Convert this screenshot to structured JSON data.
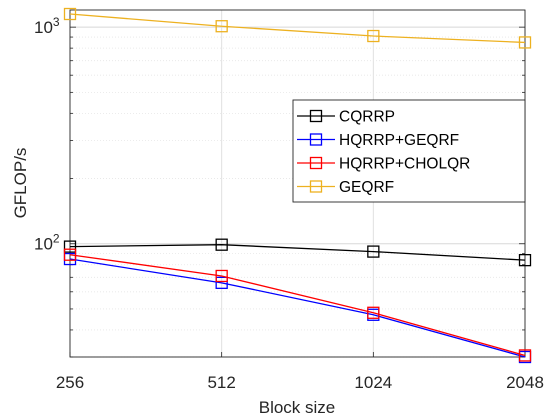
{
  "chart_data": {
    "type": "line",
    "title": "",
    "xlabel": "Block size",
    "ylabel": "GFLOP/s",
    "x": [
      256,
      512,
      1024,
      2048
    ],
    "x_ticks": [
      "256",
      "512",
      "1024",
      "2048"
    ],
    "xlim": [
      256,
      2048
    ],
    "x_scale": "log2",
    "y_scale": "log",
    "ylim": [
      30,
      1200
    ],
    "y_ticks": [
      {
        "value": 100,
        "base": "10",
        "exp": "2"
      },
      {
        "value": 1000,
        "base": "10",
        "exp": "3"
      }
    ],
    "grid": true,
    "legend_position": "inside-right",
    "marker": "square",
    "series": [
      {
        "name": "CQRRP",
        "color": "#000000",
        "values": [
          97,
          99,
          92,
          84
        ]
      },
      {
        "name": "HQRRP+GEQRF",
        "color": "#0000ff",
        "values": [
          85,
          66,
          47,
          30
        ]
      },
      {
        "name": "HQRRP+CHOLQR",
        "color": "#ff0000",
        "values": [
          89,
          71,
          48,
          30.5
        ]
      },
      {
        "name": "GEQRF",
        "color": "#edb120",
        "values": [
          1150,
          1010,
          910,
          850
        ]
      }
    ]
  }
}
